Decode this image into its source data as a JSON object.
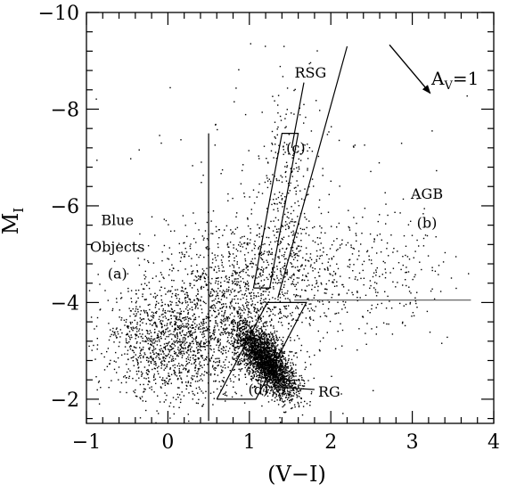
{
  "chart_data": {
    "type": "scatter",
    "title": "",
    "xlabel": "(V−I)",
    "ylabel_main": "M",
    "ylabel_sub": "I",
    "xlim": [
      -1,
      4
    ],
    "ylim": [
      -1.5,
      -10
    ],
    "x_ticks": [
      -1,
      0,
      1,
      2,
      3,
      4
    ],
    "x_tick_labels": [
      "−1",
      "0",
      "1",
      "2",
      "3",
      "4"
    ],
    "y_ticks": [
      -2,
      -4,
      -6,
      -8,
      -10
    ],
    "y_tick_labels": [
      "−2",
      "−4",
      "−6",
      "−8",
      "−10"
    ],
    "x_minor_step": 0.2,
    "y_minor_step": 0.4,
    "grid": false,
    "legend": "none",
    "point_color": "#000000",
    "region_color": "#555555",
    "clusters": [
      {
        "name": "red giant branch",
        "center": [
          1.2,
          -2.8
        ],
        "spread": [
          0.25,
          0.35
        ],
        "n": 2600,
        "shape": "tilted",
        "slope": -0.7
      },
      {
        "name": "blue objects",
        "center": [
          0.1,
          -3.2
        ],
        "spread": [
          0.45,
          0.6
        ],
        "n": 1400,
        "shape": "ellipse"
      },
      {
        "name": "intermediate",
        "center": [
          0.9,
          -4.2
        ],
        "spread": [
          0.5,
          0.7
        ],
        "n": 900,
        "shape": "ellipse"
      },
      {
        "name": "red supergiants",
        "center": [
          1.45,
          -6.0
        ],
        "spread": [
          0.2,
          1.2
        ],
        "n": 300,
        "shape": "ellipse"
      },
      {
        "name": "agb",
        "center": [
          2.2,
          -4.6
        ],
        "spread": [
          0.6,
          0.6
        ],
        "n": 350,
        "shape": "ellipse"
      },
      {
        "name": "field",
        "center": [
          1.3,
          -5.5
        ],
        "spread": [
          1.0,
          1.6
        ],
        "n": 220,
        "shape": "ellipse"
      }
    ],
    "lines": [
      {
        "name": "vertical-divider",
        "points": [
          [
            0.5,
            -1.55
          ],
          [
            0.5,
            -7.5
          ]
        ],
        "color": "#000000"
      },
      {
        "name": "rsg-boundary",
        "points": [
          [
            1.35,
            -4.1
          ],
          [
            2.2,
            -9.3
          ]
        ],
        "color": "#000000"
      },
      {
        "name": "agb-boundary",
        "points": [
          [
            1.55,
            -4.05
          ],
          [
            3.72,
            -4.05
          ]
        ],
        "color": "#555555"
      },
      {
        "name": "rsg-box",
        "points": [
          [
            1.05,
            -4.3
          ],
          [
            1.4,
            -7.5
          ],
          [
            1.6,
            -7.5
          ],
          [
            1.25,
            -4.3
          ],
          [
            1.05,
            -4.3
          ]
        ],
        "color": "#000000"
      },
      {
        "name": "rg-box",
        "points": [
          [
            0.6,
            -2.0
          ],
          [
            1.22,
            -4.0
          ],
          [
            1.7,
            -4.0
          ],
          [
            1.08,
            -2.0
          ],
          [
            0.6,
            -2.0
          ]
        ],
        "color": "#000000"
      },
      {
        "name": "rsg-label-connector",
        "points": [
          [
            1.67,
            -8.55
          ],
          [
            1.52,
            -7.2
          ]
        ],
        "color": "#000000"
      },
      {
        "name": "rg-label-connector",
        "points": [
          [
            1.3,
            -2.25
          ],
          [
            1.8,
            -2.2
          ]
        ],
        "color": "#000000"
      }
    ],
    "annotations": [
      {
        "name": "rsg-label",
        "text": "RSG",
        "x": 1.75,
        "y": -8.65,
        "size": "normal"
      },
      {
        "name": "region-c-label",
        "text": "(c)",
        "x": 1.57,
        "y": -7.1,
        "size": "normal"
      },
      {
        "name": "agb-label",
        "text": "AGB",
        "x": 3.18,
        "y": -6.15,
        "size": "normal"
      },
      {
        "name": "region-b-label",
        "text": "(b)",
        "x": 3.18,
        "y": -5.55,
        "size": "normal"
      },
      {
        "name": "blue-label",
        "text": "Blue",
        "x": -0.62,
        "y": -5.6,
        "size": "normal"
      },
      {
        "name": "objects-label",
        "text": "Objects",
        "x": -0.62,
        "y": -5.05,
        "size": "normal"
      },
      {
        "name": "region-a-label",
        "text": "(a)",
        "x": -0.62,
        "y": -4.5,
        "size": "normal"
      },
      {
        "name": "region-d-label",
        "text": "(d)",
        "x": 1.11,
        "y": -2.1,
        "size": "normal"
      },
      {
        "name": "rg-label",
        "text": "RG",
        "x": 1.98,
        "y": -2.05,
        "size": "normal"
      }
    ],
    "extinction_vector": {
      "label_main": "A",
      "label_sub": "V",
      "label_rest": "=1",
      "from": [
        2.72,
        -9.33
      ],
      "to": [
        3.22,
        -8.33
      ]
    }
  }
}
